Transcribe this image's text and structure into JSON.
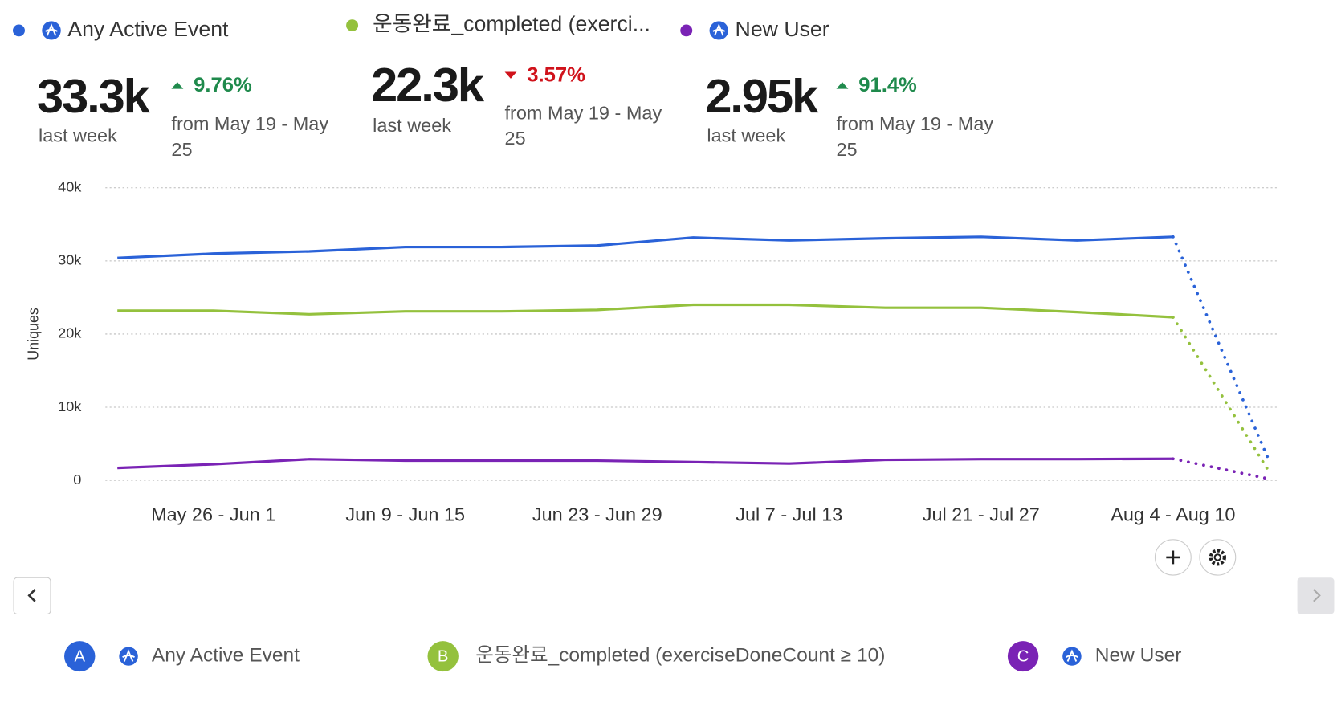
{
  "legend": [
    "Any Active Event",
    "운동완료_completed (exerci...",
    "New User"
  ],
  "metrics": [
    {
      "value": "33.3k",
      "period": "last week",
      "change": "9.76%",
      "trend": "up",
      "comparison": "from May 19 - May 25"
    },
    {
      "value": "22.3k",
      "period": "last week",
      "change": "3.57%",
      "trend": "down",
      "comparison": "from May 19 - May 25"
    },
    {
      "value": "2.95k",
      "period": "last week",
      "change": "91.4%",
      "trend": "up",
      "comparison": "from May 19 - May 25"
    }
  ],
  "chart_data": {
    "type": "line",
    "y_label": "Uniques",
    "categories": [
      null,
      "May 26 - Jun 1",
      null,
      "Jun 9 - Jun 15",
      null,
      "Jun 23 - Jun 29",
      null,
      "Jul 7 - Jul 13",
      null,
      "Jul 21 - Jul 27",
      null,
      "Aug 4 - Aug 10",
      null
    ],
    "series": [
      {
        "name": "Any Active Event",
        "color": "#2a62d8",
        "values": [
          30400,
          31000,
          31300,
          31900,
          31900,
          32100,
          33200,
          32800,
          33100,
          33300,
          32800,
          33300,
          2700
        ]
      },
      {
        "name": "운동완료_completed (exerciseDoneCount ≥ 10)",
        "color": "#94c13d",
        "values": [
          23200,
          23200,
          22700,
          23100,
          23100,
          23300,
          24000,
          24000,
          23600,
          23600,
          23000,
          22300,
          1200
        ]
      },
      {
        "name": "New User",
        "color": "#7a23b5",
        "values": [
          1700,
          2200,
          2900,
          2700,
          2700,
          2700,
          2500,
          2300,
          2800,
          2900,
          2900,
          2950,
          200
        ]
      }
    ],
    "ylim": [
      0,
      40000
    ],
    "yticks": [
      0,
      {
        "value": 10000,
        "label": "10k"
      },
      {
        "value": 20000,
        "label": "20k"
      },
      {
        "value": 30000,
        "label": "30k"
      },
      {
        "value": 40000,
        "label": "40k"
      }
    ],
    "grid": true
  },
  "footer_legend": [
    {
      "letter": "A"
    },
    {
      "letter": "B"
    },
    {
      "letter": "C"
    }
  ]
}
